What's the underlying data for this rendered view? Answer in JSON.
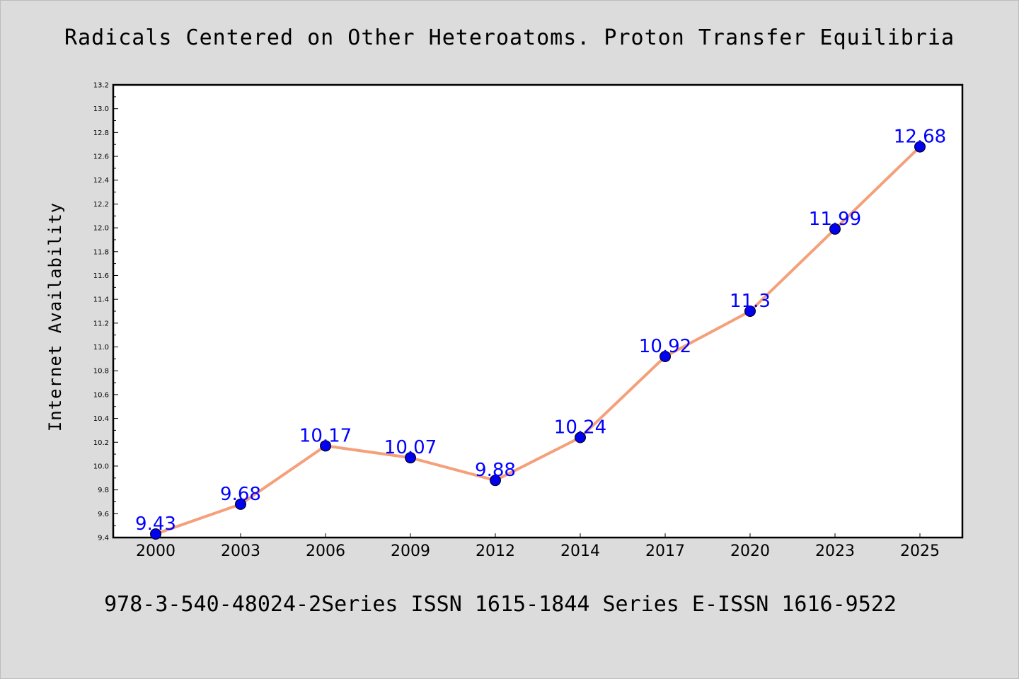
{
  "figure": {
    "background_color": "#dcdcdc",
    "footer_text": "978-3-540-48024-2Series ISSN 1615-1844 Series E-ISSN 1616-9522"
  },
  "chart_data": {
    "type": "line",
    "title": "Radicals Centered on Other Heteroatoms. Proton Transfer Equilibria",
    "xlabel": "",
    "ylabel": "Internet Availability",
    "categories": [
      "2000",
      "2003",
      "2006",
      "2009",
      "2012",
      "2014",
      "2017",
      "2020",
      "2023",
      "2025"
    ],
    "series": [
      {
        "values": [
          9.43,
          9.68,
          10.17,
          10.07,
          9.88,
          10.24,
          10.92,
          11.3,
          11.99,
          12.68
        ],
        "value_labels": [
          "9.43",
          "9.68",
          "10.17",
          "10.07",
          "9.88",
          "10.24",
          "10.92",
          "11.3",
          "11.99",
          "12.68"
        ],
        "line_color": "#f4a07a",
        "marker_color": "#0000ee",
        "label_color": "#0000ff"
      }
    ],
    "ylim": [
      9.4,
      13.2
    ],
    "yticks": [
      "9.4",
      "9.6",
      "9.8",
      "10.0",
      "10.2",
      "10.4",
      "10.6",
      "10.8",
      "11.0",
      "11.2",
      "11.4",
      "11.6",
      "11.8",
      "12.0",
      "12.2",
      "12.4",
      "12.6",
      "12.8",
      "13.0",
      "13.2"
    ],
    "grid": false,
    "legend": "none"
  }
}
